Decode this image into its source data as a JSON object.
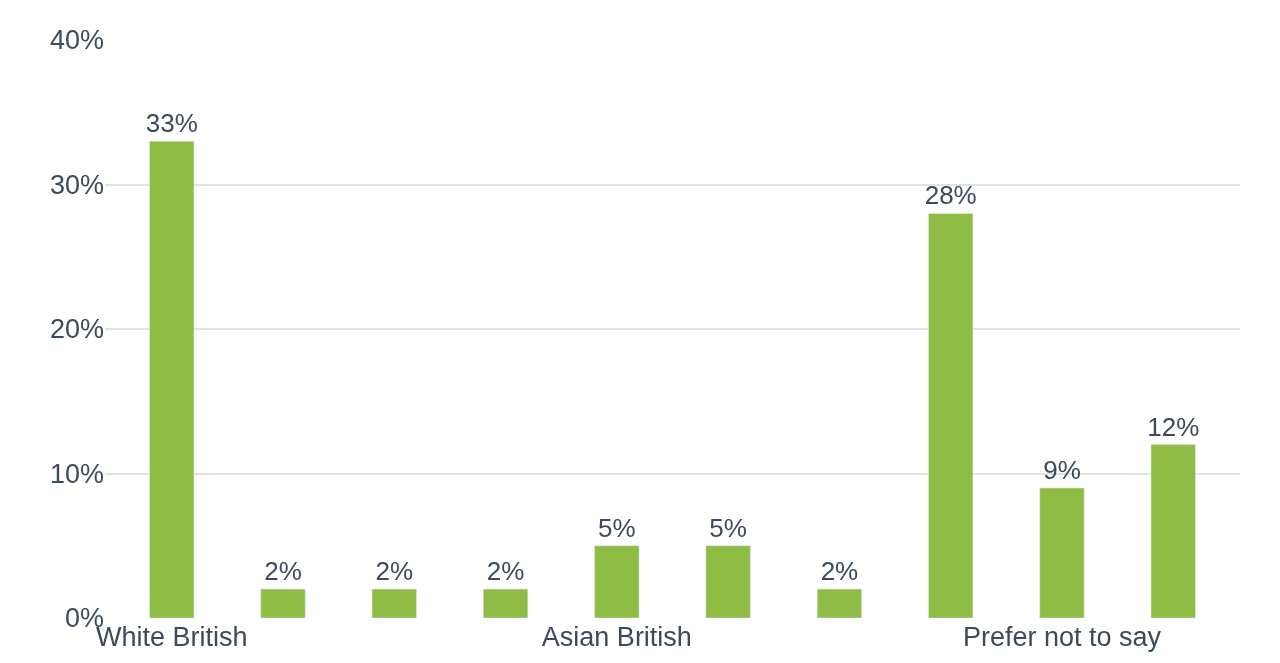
{
  "chart_data": {
    "type": "bar",
    "categories": [
      "White British",
      null,
      null,
      null,
      "Asian British",
      null,
      null,
      null,
      "Prefer not to say",
      null
    ],
    "values": [
      33,
      2,
      2,
      2,
      5,
      5,
      2,
      28,
      9,
      12
    ],
    "value_labels": [
      "33%",
      "2%",
      "2%",
      "2%",
      "5%",
      "5%",
      "2%",
      "28%",
      "9%",
      "12%"
    ],
    "color": "#8fbc45",
    "ylim": [
      0,
      40
    ],
    "yticks": [
      {
        "value": 0,
        "label": "0%"
      },
      {
        "value": 10,
        "label": "10%"
      },
      {
        "value": 20,
        "label": "20%"
      },
      {
        "value": 30,
        "label": "30%"
      },
      {
        "value": 40,
        "label": "40%"
      }
    ],
    "grid": "y",
    "legend": false
  }
}
